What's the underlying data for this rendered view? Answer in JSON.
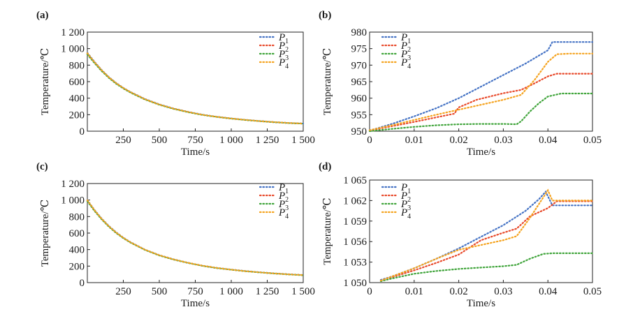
{
  "figure": {
    "colors": {
      "P1": "#4472c4",
      "P2": "#e8492a",
      "P3": "#3fa43a",
      "P4": "#f5a31f"
    },
    "legend_labels": [
      "P",
      "P",
      "P",
      "P"
    ],
    "legend_subscripts": [
      "1",
      "2",
      "3",
      "4"
    ]
  },
  "chart_data": [
    {
      "panel": "(a)",
      "type": "line",
      "xlabel": "Time/s",
      "ylabel": "Temperature/℃",
      "xlim": [
        0,
        1500
      ],
      "ylim": [
        0,
        1200
      ],
      "xticks": [
        250,
        500,
        750,
        1000,
        1250,
        1500
      ],
      "xtick_labels": [
        "250",
        "500",
        "750",
        "1 000",
        "1 250",
        "1 500"
      ],
      "yticks": [
        0,
        200,
        400,
        600,
        800,
        1000,
        1200
      ],
      "ytick_labels": [
        "0",
        "200",
        "400",
        "600",
        "800",
        "1 000",
        "1 200"
      ],
      "legend_position": "top-right",
      "series": [
        {
          "name": "P1",
          "x": [
            0,
            50,
            100,
            150,
            200,
            250,
            300,
            400,
            500,
            600,
            700,
            800,
            900,
            1000,
            1100,
            1200,
            1300,
            1400,
            1500
          ],
          "y": [
            950,
            840,
            740,
            655,
            585,
            525,
            475,
            390,
            325,
            275,
            235,
            200,
            175,
            155,
            138,
            123,
            110,
            100,
            93
          ]
        },
        {
          "name": "P2",
          "x": [
            0,
            50,
            100,
            150,
            200,
            250,
            300,
            400,
            500,
            600,
            700,
            800,
            900,
            1000,
            1100,
            1200,
            1300,
            1400,
            1500
          ],
          "y": [
            940,
            832,
            735,
            650,
            580,
            521,
            471,
            387,
            322,
            272,
            232,
            198,
            173,
            153,
            136,
            122,
            109,
            99,
            92
          ]
        },
        {
          "name": "P3",
          "x": [
            0,
            50,
            100,
            150,
            200,
            250,
            300,
            400,
            500,
            600,
            700,
            800,
            900,
            1000,
            1100,
            1200,
            1300,
            1400,
            1500
          ],
          "y": [
            930,
            825,
            728,
            645,
            575,
            517,
            467,
            384,
            320,
            270,
            230,
            197,
            172,
            152,
            135,
            121,
            108,
            98,
            91
          ]
        },
        {
          "name": "P4",
          "x": [
            0,
            50,
            100,
            150,
            200,
            250,
            300,
            400,
            500,
            600,
            700,
            800,
            900,
            1000,
            1100,
            1200,
            1300,
            1400,
            1500
          ],
          "y": [
            945,
            836,
            738,
            652,
            582,
            523,
            473,
            388,
            323,
            273,
            233,
            199,
            174,
            154,
            137,
            122,
            110,
            100,
            92
          ]
        }
      ]
    },
    {
      "panel": "(b)",
      "type": "line",
      "xlabel": "Time/s",
      "ylabel": "Temperature/℃",
      "xlim": [
        0,
        0.05
      ],
      "ylim": [
        950,
        980
      ],
      "xticks": [
        0,
        0.01,
        0.02,
        0.03,
        0.04,
        0.05
      ],
      "xtick_labels": [
        "0",
        "0.01",
        "0.02",
        "0.03",
        "0.04",
        "0.05"
      ],
      "yticks": [
        950,
        955,
        960,
        965,
        970,
        975,
        980
      ],
      "ytick_labels": [
        "950",
        "955",
        "960",
        "965",
        "970",
        "975",
        "980"
      ],
      "legend_position": "top-left",
      "series": [
        {
          "name": "P1",
          "x": [
            0,
            0.005,
            0.01,
            0.015,
            0.02,
            0.025,
            0.03,
            0.035,
            0.04,
            0.041,
            0.045,
            0.05
          ],
          "y": [
            950.2,
            952.2,
            954.5,
            957.0,
            960.0,
            963.5,
            967.0,
            970.5,
            974.5,
            977.0,
            977.0,
            977.0
          ]
        },
        {
          "name": "P2",
          "x": [
            0,
            0.005,
            0.01,
            0.015,
            0.019,
            0.02,
            0.024,
            0.03,
            0.034,
            0.037,
            0.04,
            0.042,
            0.05
          ],
          "y": [
            950.2,
            951.5,
            952.8,
            954.2,
            955.3,
            957.2,
            959.5,
            961.5,
            962.5,
            964.5,
            966.6,
            967.4,
            967.4
          ]
        },
        {
          "name": "P3",
          "x": [
            0,
            0.005,
            0.01,
            0.015,
            0.02,
            0.025,
            0.03,
            0.033,
            0.034,
            0.036,
            0.038,
            0.04,
            0.043,
            0.05
          ],
          "y": [
            950.0,
            950.7,
            951.3,
            951.8,
            952.1,
            952.2,
            952.2,
            952.1,
            953.0,
            956.0,
            958.5,
            960.5,
            961.4,
            961.4
          ]
        },
        {
          "name": "P4",
          "x": [
            0,
            0.005,
            0.01,
            0.015,
            0.02,
            0.025,
            0.03,
            0.034,
            0.037,
            0.04,
            0.042,
            0.045,
            0.05
          ],
          "y": [
            950.3,
            951.8,
            953.4,
            955.0,
            956.5,
            958.0,
            959.5,
            961.0,
            965.5,
            971.0,
            973.3,
            973.5,
            973.5
          ]
        }
      ]
    },
    {
      "panel": "(c)",
      "type": "line",
      "xlabel": "Time/s",
      "ylabel": "Temperature/℃",
      "xlim": [
        0,
        1500
      ],
      "ylim": [
        0,
        1200
      ],
      "xticks": [
        250,
        500,
        750,
        1000,
        1250,
        1500
      ],
      "xtick_labels": [
        "250",
        "500",
        "750",
        "1 000",
        "1 250",
        "1 500"
      ],
      "yticks": [
        0,
        200,
        400,
        600,
        800,
        1000,
        1200
      ],
      "ytick_labels": [
        "0",
        "200",
        "400",
        "600",
        "800",
        "1 000",
        "1 200"
      ],
      "legend_position": "top-right",
      "series": [
        {
          "name": "P1",
          "x": [
            0,
            50,
            100,
            150,
            200,
            250,
            300,
            400,
            500,
            600,
            700,
            800,
            900,
            1000,
            1100,
            1200,
            1300,
            1400,
            1500
          ],
          "y": [
            1000,
            880,
            775,
            685,
            610,
            545,
            490,
            400,
            333,
            282,
            240,
            205,
            178,
            158,
            140,
            125,
            112,
            101,
            92
          ]
        },
        {
          "name": "P2",
          "x": [
            0,
            50,
            100,
            150,
            200,
            250,
            300,
            400,
            500,
            600,
            700,
            800,
            900,
            1000,
            1100,
            1200,
            1300,
            1400,
            1500
          ],
          "y": [
            995,
            875,
            770,
            680,
            605,
            541,
            487,
            398,
            331,
            280,
            239,
            204,
            177,
            157,
            139,
            124,
            111,
            100,
            91
          ]
        },
        {
          "name": "P3",
          "x": [
            0,
            50,
            100,
            150,
            200,
            250,
            300,
            400,
            500,
            600,
            700,
            800,
            900,
            1000,
            1100,
            1200,
            1300,
            1400,
            1500
          ],
          "y": [
            985,
            868,
            765,
            676,
            601,
            538,
            484,
            396,
            329,
            279,
            238,
            203,
            176,
            156,
            138,
            123,
            110,
            99,
            90
          ]
        },
        {
          "name": "P4",
          "x": [
            0,
            50,
            100,
            150,
            200,
            250,
            300,
            400,
            500,
            600,
            700,
            800,
            900,
            1000,
            1100,
            1200,
            1300,
            1400,
            1500
          ],
          "y": [
            998,
            877,
            772,
            682,
            607,
            543,
            488,
            399,
            332,
            281,
            240,
            205,
            178,
            157,
            139,
            124,
            111,
            100,
            91
          ]
        }
      ]
    },
    {
      "panel": "(d)",
      "type": "line",
      "xlabel": "Time/s",
      "ylabel": "Temperature/℃",
      "xlim": [
        0,
        0.05
      ],
      "ylim": [
        1050,
        1065
      ],
      "xticks": [
        0,
        0.01,
        0.02,
        0.03,
        0.04,
        0.05
      ],
      "xtick_labels": [
        "0",
        "0.01",
        "0.02",
        "0.03",
        "0.04",
        "0.05"
      ],
      "yticks": [
        1050,
        1053,
        1056,
        1059,
        1062,
        1065
      ],
      "ytick_labels": [
        "1 050",
        "1 053",
        "1 056",
        "1 059",
        "1 062",
        "1 065"
      ],
      "legend_position": "top-left",
      "series": [
        {
          "name": "P1",
          "x": [
            0.0025,
            0.005,
            0.01,
            0.015,
            0.02,
            0.025,
            0.03,
            0.035,
            0.038,
            0.0395,
            0.041,
            0.043,
            0.05
          ],
          "y": [
            1050.4,
            1050.9,
            1052.1,
            1053.5,
            1055.0,
            1056.7,
            1058.4,
            1060.5,
            1062.2,
            1063.3,
            1061.3,
            1061.3,
            1061.3
          ]
        },
        {
          "name": "P2",
          "x": [
            0.0025,
            0.005,
            0.01,
            0.015,
            0.02,
            0.025,
            0.03,
            0.033,
            0.036,
            0.04,
            0.042,
            0.05
          ],
          "y": [
            1050.3,
            1050.8,
            1051.8,
            1052.9,
            1054.1,
            1056.2,
            1057.3,
            1057.9,
            1059.7,
            1060.9,
            1061.9,
            1061.9
          ]
        },
        {
          "name": "P3",
          "x": [
            0.0025,
            0.005,
            0.01,
            0.015,
            0.02,
            0.025,
            0.03,
            0.033,
            0.036,
            0.039,
            0.041,
            0.05
          ],
          "y": [
            1050.2,
            1050.6,
            1051.3,
            1051.7,
            1052.0,
            1052.2,
            1052.4,
            1052.6,
            1053.5,
            1054.2,
            1054.3,
            1054.3
          ]
        },
        {
          "name": "P4",
          "x": [
            0.0025,
            0.005,
            0.01,
            0.015,
            0.02,
            0.025,
            0.03,
            0.033,
            0.036,
            0.039,
            0.04,
            0.041,
            0.05
          ],
          "y": [
            1050.3,
            1050.9,
            1052.1,
            1053.5,
            1054.8,
            1055.5,
            1056.2,
            1056.8,
            1059.5,
            1062.5,
            1063.5,
            1062.0,
            1062.0
          ]
        }
      ]
    }
  ]
}
